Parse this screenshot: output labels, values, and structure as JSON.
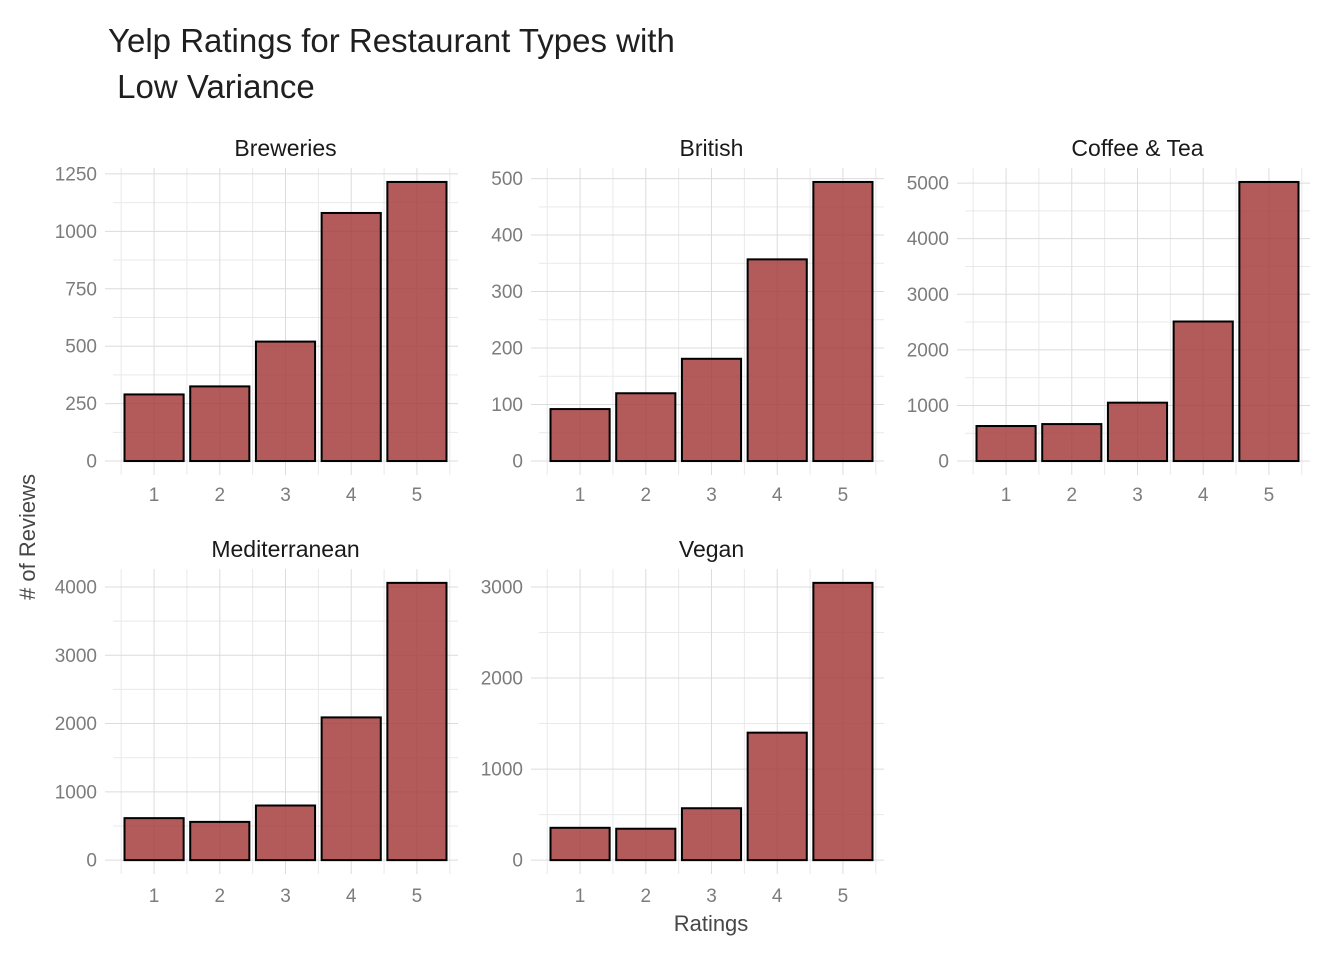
{
  "figure": {
    "title": "Yelp Ratings for Restaurant Types with\n Low Variance",
    "x_axis_title": "Ratings",
    "y_axis_title": "# of Reviews"
  },
  "style": {
    "bar_fill": "#A63D3D",
    "bar_fill_alpha": 0.85,
    "bar_fill_displayed": "#B35A5A",
    "bar_stroke": "#000000",
    "grid_major_color": "#DCDCDC",
    "grid_minor_color": "#E9E9E9",
    "tick_label_color": "#7C7C7C",
    "facet_title_color": "#1A1A1A",
    "axis_title_color": "#474747",
    "background": "#FFFFFF"
  },
  "chart_data": {
    "type": "bar",
    "title": "Yelp Ratings for Restaurant Types with Low Variance",
    "xlabel": "Ratings",
    "ylabel": "# of Reviews",
    "grid": true,
    "legend": false,
    "categories": [
      1,
      2,
      3,
      4,
      5
    ],
    "x_tick_labels": [
      "1",
      "2",
      "3",
      "4",
      "5"
    ],
    "facets": [
      {
        "title": "Breweries",
        "values": [
          290,
          325,
          520,
          1080,
          1215
        ],
        "y_ticks": [
          0,
          250,
          500,
          750,
          1000,
          1250
        ],
        "ylim": [
          0,
          1250
        ]
      },
      {
        "title": "British",
        "values": [
          92,
          120,
          181,
          357,
          494
        ],
        "y_ticks": [
          0,
          100,
          200,
          300,
          400,
          500
        ],
        "ylim": [
          0,
          500
        ]
      },
      {
        "title": "Coffee & Tea",
        "values": [
          630,
          665,
          1050,
          2510,
          5020
        ],
        "y_ticks": [
          0,
          1000,
          2000,
          3000,
          4000,
          5000
        ],
        "ylim": [
          0,
          5000
        ]
      },
      {
        "title": "Mediterranean",
        "values": [
          615,
          560,
          800,
          2090,
          4060
        ],
        "y_ticks": [
          0,
          1000,
          2000,
          3000,
          4000
        ],
        "ylim": [
          0,
          4000
        ]
      },
      {
        "title": "Vegan",
        "values": [
          355,
          345,
          570,
          1400,
          3045
        ],
        "y_ticks": [
          0,
          1000,
          2000,
          3000
        ],
        "ylim": [
          0,
          3000
        ]
      }
    ]
  }
}
